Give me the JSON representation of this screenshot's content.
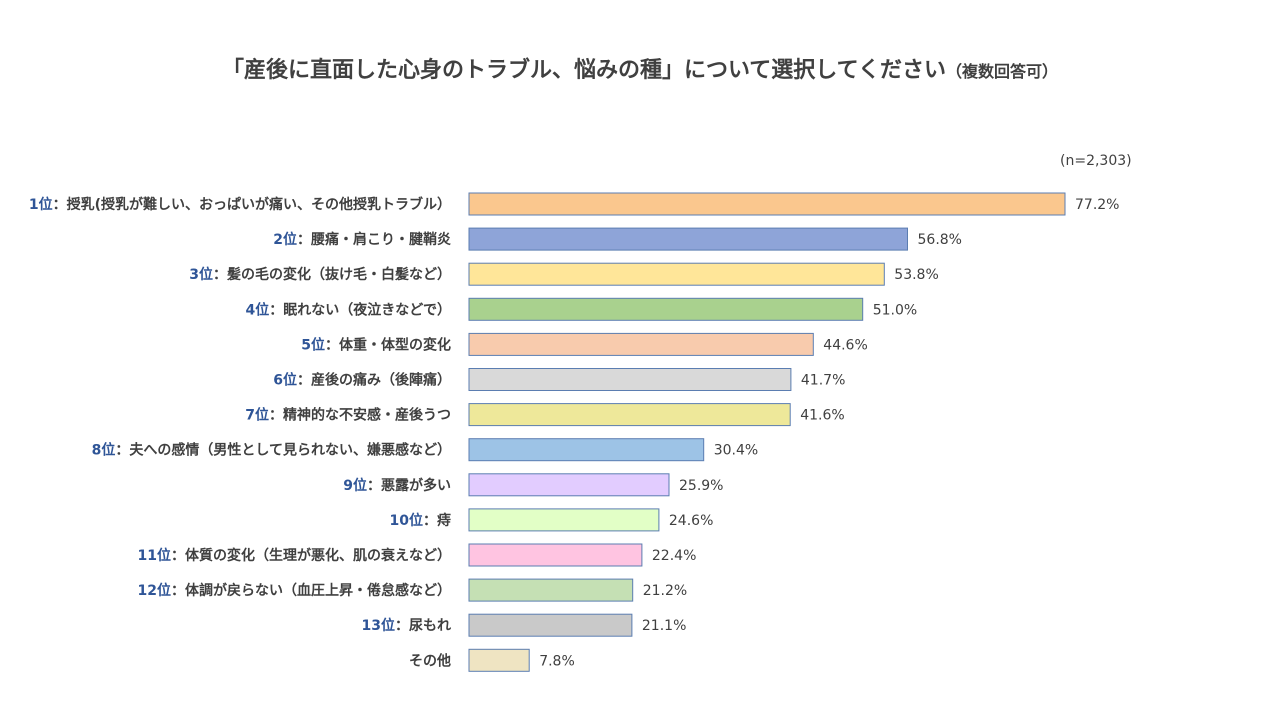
{
  "title": "「産後に直面した心身のトラブル、悩みの種」について選択してください",
  "title_note": "（複数回答可）",
  "sample_note": "(n=2,303)",
  "chart_data": {
    "type": "bar",
    "orientation": "horizontal",
    "title": "「産後に直面した心身のトラブル、悩みの種」について選択してください（複数回答可）",
    "xlim": [
      0,
      80
    ],
    "grid": false,
    "legend": "none",
    "categories": [
      {
        "rank": "1位",
        "label": "：授乳(授乳が難しい、おっぱいが痛い、その他授乳トラブル）",
        "value": 77.2,
        "value_label": "77.2%",
        "color": "#FAC78E"
      },
      {
        "rank": "2位",
        "label": "：腰痛・肩こり・腱鞘炎",
        "value": 56.8,
        "value_label": "56.8%",
        "color": "#8EA4D8"
      },
      {
        "rank": "3位",
        "label": "：髪の毛の変化（抜け毛・白髪など）",
        "value": 53.8,
        "value_label": "53.8%",
        "color": "#FFE699"
      },
      {
        "rank": "4位",
        "label": "：眠れない（夜泣きなどで）",
        "value": 51.0,
        "value_label": "51.0%",
        "color": "#A9D18E"
      },
      {
        "rank": "5位",
        "label": "：体重・体型の変化",
        "value": 44.6,
        "value_label": "44.6%",
        "color": "#F8CBAD"
      },
      {
        "rank": "6位",
        "label": "：産後の痛み（後陣痛）",
        "value": 41.7,
        "value_label": "41.7%",
        "color": "#D9D9D9"
      },
      {
        "rank": "7位",
        "label": "：精神的な不安感・産後うつ",
        "value": 41.6,
        "value_label": "41.6%",
        "color": "#EEE89A"
      },
      {
        "rank": "8位",
        "label": "：夫への感情（男性として見られない、嫌悪感など）",
        "value": 30.4,
        "value_label": "30.4%",
        "color": "#9DC3E6"
      },
      {
        "rank": "9位",
        "label": "：悪露が多い",
        "value": 25.9,
        "value_label": "25.9%",
        "color": "#E2CCFF"
      },
      {
        "rank": "10位",
        "label": "：痔",
        "value": 24.6,
        "value_label": "24.6%",
        "color": "#E2FFC6"
      },
      {
        "rank": "11位",
        "label": "：体質の変化（生理が悪化、肌の衰えなど）",
        "value": 22.4,
        "value_label": "22.4%",
        "color": "#FFC4E1"
      },
      {
        "rank": "12位",
        "label": "：体調が戻らない（血圧上昇・倦怠感など）",
        "value": 21.2,
        "value_label": "21.2%",
        "color": "#C5E0B4"
      },
      {
        "rank": "13位",
        "label": "：尿もれ",
        "value": 21.1,
        "value_label": "21.1%",
        "color": "#C9C9C9"
      },
      {
        "rank": "",
        "label": "その他",
        "value": 7.8,
        "value_label": "7.8%",
        "color": "#EFE4C2"
      }
    ],
    "bar_stroke": "#5B7DB1"
  }
}
